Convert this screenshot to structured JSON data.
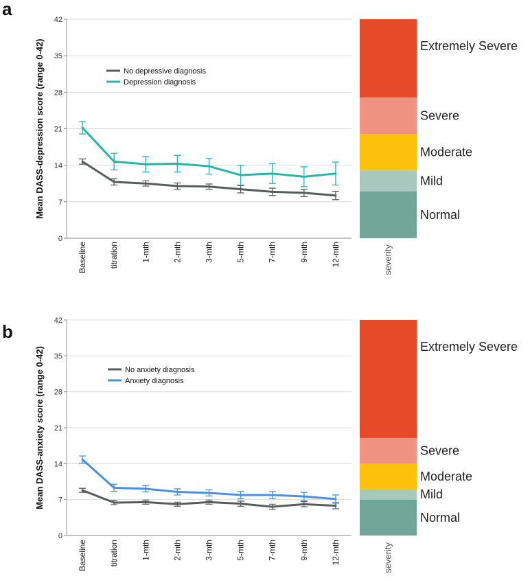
{
  "chart_data": [
    {
      "panel": "a",
      "type": "line",
      "ylabel": "Mean DASS-depression score (range 0-42)",
      "ylim": [
        0,
        42
      ],
      "yticks": [
        0,
        7,
        14,
        21,
        28,
        35,
        42
      ],
      "categories": [
        "Baseline",
        "titration",
        "1-mth",
        "2-mth",
        "3-mth",
        "5-mth",
        "7-mth",
        "9-mth",
        "12-mth"
      ],
      "series": [
        {
          "name": "No depressive diagnosis",
          "color": "#555d5b",
          "values": [
            14.7,
            10.8,
            10.5,
            10.0,
            9.9,
            9.4,
            8.9,
            8.7,
            8.2
          ],
          "errors": [
            0.5,
            0.6,
            0.5,
            0.6,
            0.5,
            0.7,
            0.7,
            0.7,
            0.8
          ]
        },
        {
          "name": "Depression diagnosis",
          "color": "#26b5a7",
          "values": [
            21.2,
            14.7,
            14.2,
            14.3,
            13.8,
            12.1,
            12.4,
            11.8,
            12.4
          ],
          "errors": [
            1.2,
            1.6,
            1.5,
            1.6,
            1.5,
            1.9,
            1.9,
            1.9,
            2.2
          ]
        }
      ],
      "legend_position": "top-left",
      "severity": {
        "axis_label": "severity",
        "bands": [
          {
            "label": "Normal",
            "from": 0,
            "to": 9,
            "color": "#71a597"
          },
          {
            "label": "Mild",
            "from": 9,
            "to": 13,
            "color": "#a9c8bd"
          },
          {
            "label": "Moderate",
            "from": 13,
            "to": 20,
            "color": "#fdc10b"
          },
          {
            "label": "Severe",
            "from": 20,
            "to": 27,
            "color": "#f09282"
          },
          {
            "label": "Extremely Severe",
            "from": 27,
            "to": 42,
            "color": "#e64a28"
          }
        ]
      }
    },
    {
      "panel": "b",
      "type": "line",
      "ylabel": "Mean DASS-anxiety score (range 0-42)",
      "ylim": [
        0,
        42
      ],
      "yticks": [
        0,
        7,
        14,
        21,
        28,
        35,
        42
      ],
      "categories": [
        "Baseline",
        "titration",
        "1-mth",
        "2-mth",
        "3-mth",
        "5-mth",
        "7-mth",
        "9-mth",
        "12-mth"
      ],
      "series": [
        {
          "name": "No anxiety diagnosis",
          "color": "#555d5b",
          "values": [
            8.8,
            6.4,
            6.5,
            6.1,
            6.5,
            6.2,
            5.6,
            6.1,
            5.8
          ],
          "errors": [
            0.4,
            0.4,
            0.4,
            0.4,
            0.4,
            0.5,
            0.5,
            0.5,
            0.6
          ]
        },
        {
          "name": "Anxiety diagnosis",
          "color": "#4a90e2",
          "values": [
            14.8,
            9.3,
            9.1,
            8.5,
            8.3,
            7.9,
            7.9,
            7.6,
            7.1
          ],
          "errors": [
            0.7,
            0.7,
            0.6,
            0.6,
            0.6,
            0.7,
            0.7,
            0.8,
            0.8
          ]
        }
      ],
      "legend_position": "top-left",
      "severity": {
        "axis_label": "severity",
        "bands": [
          {
            "label": "Normal",
            "from": 0,
            "to": 7,
            "color": "#71a597"
          },
          {
            "label": "Mild",
            "from": 7,
            "to": 9,
            "color": "#a9c8bd"
          },
          {
            "label": "Moderate",
            "from": 9,
            "to": 14,
            "color": "#fdc10b"
          },
          {
            "label": "Severe",
            "from": 14,
            "to": 19,
            "color": "#f09282"
          },
          {
            "label": "Extremely Severe",
            "from": 19,
            "to": 42,
            "color": "#e64a28"
          }
        ]
      }
    }
  ]
}
